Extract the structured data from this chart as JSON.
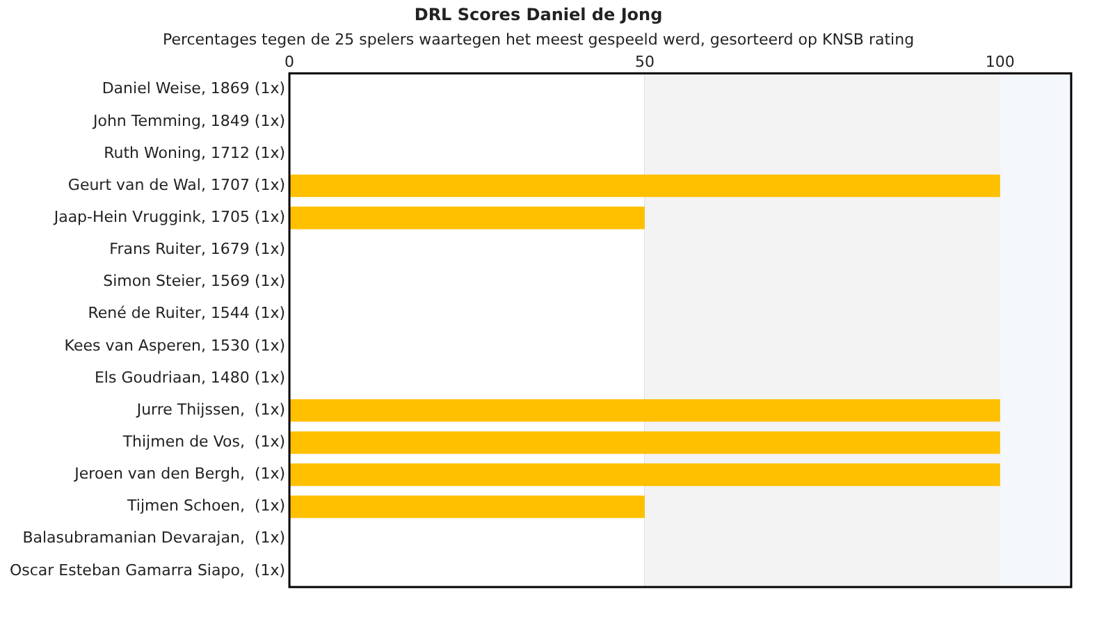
{
  "chart_data": {
    "type": "bar",
    "orientation": "horizontal",
    "title": "DRL Scores Daniel de Jong",
    "subtitle": "Percentages tegen de 25 spelers waartegen het meest gespeeld werd, gesorteerd op KNSB rating",
    "categories": [
      "Daniel Weise, 1869 (1x)",
      "John Temming, 1849 (1x)",
      "Ruth Woning, 1712 (1x)",
      "Geurt van de Wal, 1707 (1x)",
      "Jaap-Hein Vruggink, 1705 (1x)",
      "Frans Ruiter, 1679 (1x)",
      "Simon Steier, 1569 (1x)",
      "René de Ruiter, 1544 (1x)",
      "Kees van Asperen, 1530 (1x)",
      "Els Goudriaan, 1480 (1x)",
      "Jurre Thijssen,  (1x)",
      "Thijmen de Vos,  (1x)",
      "Jeroen van den Bergh,  (1x)",
      "Tijmen Schoen,  (1x)",
      "Balasubramanian Devarajan,  (1x)",
      "Oscar Esteban Gamarra Siapo,  (1x)"
    ],
    "values": [
      0,
      0,
      0,
      100,
      50,
      0,
      0,
      0,
      0,
      0,
      100,
      100,
      100,
      50,
      0,
      0
    ],
    "color": "#ffc000",
    "xlim": [
      0,
      110
    ],
    "xticks": [
      0,
      50,
      100
    ],
    "bands": [
      {
        "axis": "x",
        "from": 50,
        "to": 100,
        "color": "#f3f3f3"
      },
      {
        "axis": "x",
        "from": 100,
        "to": 110,
        "color": "#f4f7fb"
      }
    ],
    "grid": "x",
    "legend": false
  }
}
